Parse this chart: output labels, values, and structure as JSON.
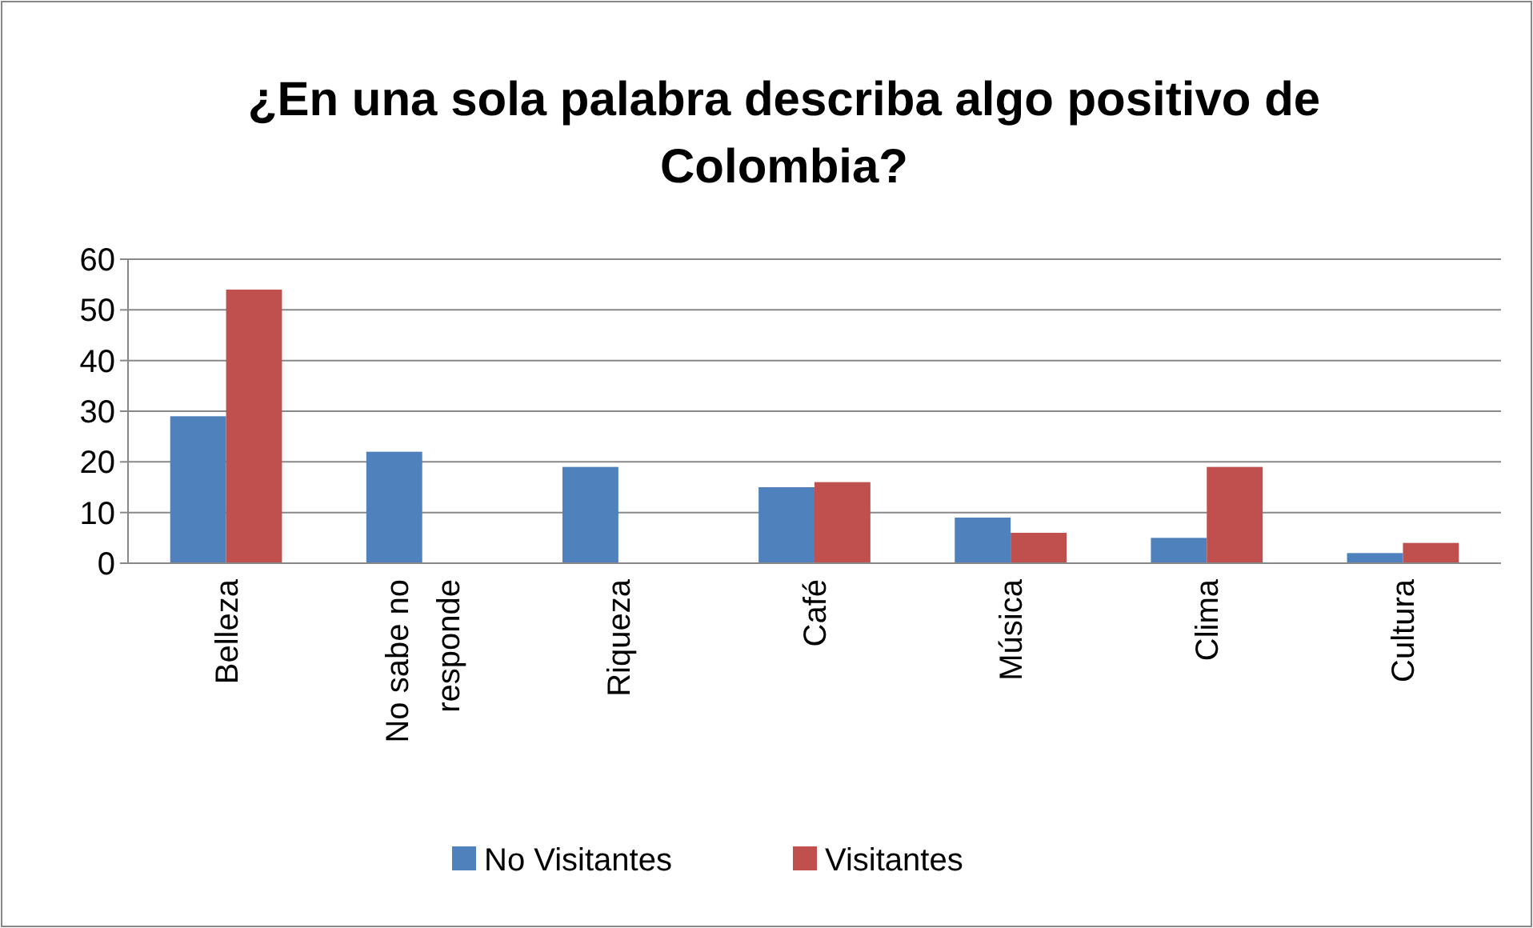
{
  "chart_data": {
    "type": "bar",
    "title": "¿En una sola palabra describa algo positivo de Colombia?",
    "categories": [
      "Belleza",
      "No sabe no responde",
      "Riqueza",
      "Café",
      "Música",
      "Clima",
      "Cultura"
    ],
    "series": [
      {
        "name": "No Visitantes",
        "color": "#4f81bd",
        "values": [
          29,
          22,
          19,
          15,
          9,
          5,
          2
        ]
      },
      {
        "name": "Visitantes",
        "color": "#c0504d",
        "values": [
          54,
          0,
          0,
          16,
          6,
          19,
          4
        ]
      }
    ],
    "ylim": [
      0,
      60
    ],
    "yticks": [
      0,
      10,
      20,
      30,
      40,
      50,
      60
    ],
    "grid": "y",
    "legend": "bottom"
  }
}
